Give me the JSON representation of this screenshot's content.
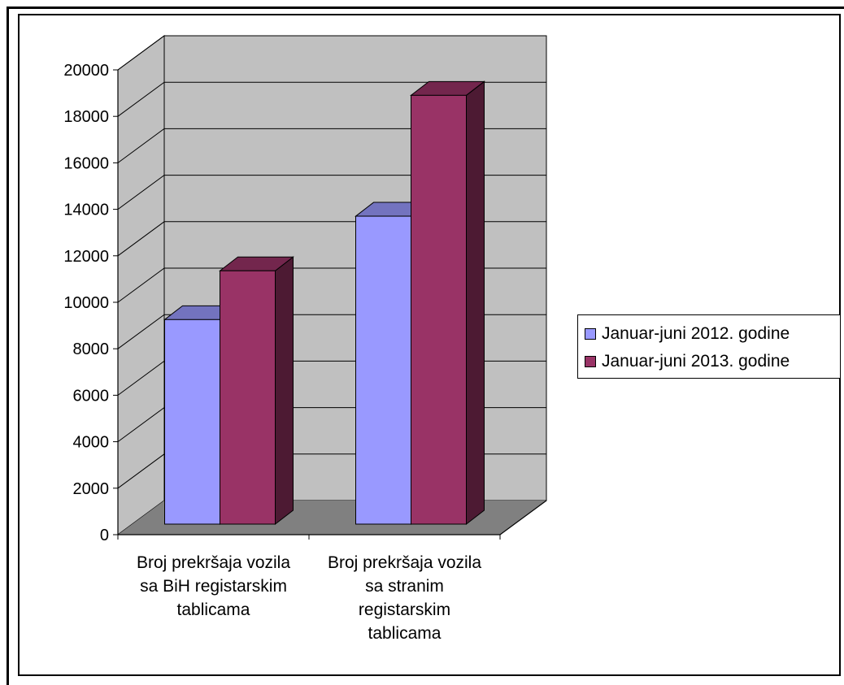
{
  "chart_data": {
    "type": "bar",
    "style": "3d-clustered-column",
    "title": "",
    "xlabel": "",
    "ylabel": "",
    "categories": [
      "Broj prekršaja vozila sa BiH registarskim tablicama",
      "Broj prekršaja vozila sa stranim registarskim tablicama"
    ],
    "category_label_lines": [
      [
        "Broj prekršaja vozila",
        "sa BiH registarskim",
        "tablicama"
      ],
      [
        "Broj prekršaja vozila",
        "sa stranim",
        "registarskim",
        "tablicama"
      ]
    ],
    "series": [
      {
        "name": "Januar-juni 2012. godine",
        "values": [
          8800,
          13250
        ],
        "color": "#9999ff"
      },
      {
        "name": "Januar-juni 2013. godine",
        "values": [
          10900,
          18450
        ],
        "color": "#993366"
      }
    ],
    "ylim": [
      0,
      20000
    ],
    "yticks": [
      0,
      2000,
      4000,
      6000,
      8000,
      10000,
      12000,
      14000,
      16000,
      18000,
      20000
    ],
    "grid": true,
    "legend_position": "right",
    "colors": {
      "wall": "#c0c0c0",
      "floor": "#808080"
    }
  }
}
